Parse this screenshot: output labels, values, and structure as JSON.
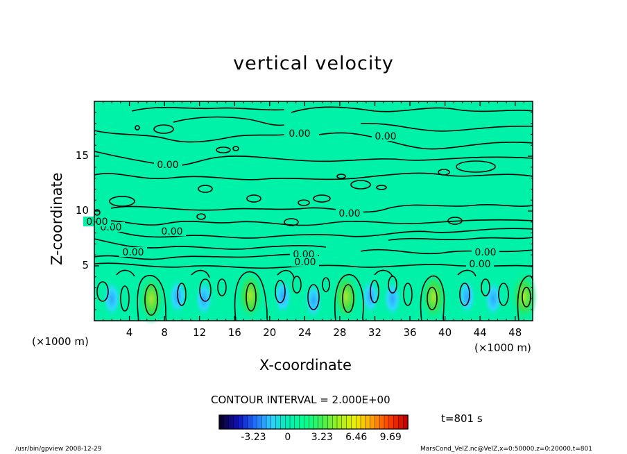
{
  "chart_data": {
    "type": "heatmap",
    "title": "vertical velocity",
    "xlabel": "X-coordinate",
    "ylabel": "Z-coordinate",
    "x_unit_left": "(×1000 m)",
    "x_unit_right": "(×1000 m)",
    "xlim": [
      0,
      50
    ],
    "ylim": [
      0,
      20
    ],
    "x_ticks": [
      4,
      8,
      12,
      16,
      20,
      24,
      28,
      32,
      36,
      40,
      44,
      48
    ],
    "y_ticks": [
      5,
      10,
      15
    ],
    "contour_interval": "CONTOUR INTERVAL = 2.000E+00",
    "time_label": "t=801 s",
    "colorbar": {
      "ticks": [
        "-3.23",
        "0",
        "3.23",
        "6.46",
        "9.69"
      ],
      "tick_values": [
        -3.23,
        0,
        3.23,
        6.46,
        9.69
      ],
      "range": [
        -6.46,
        11.31
      ],
      "colors": [
        "#0a0030",
        "#1010c0",
        "#1f6fff",
        "#2fd0ff",
        "#00f0b0",
        "#00ff90",
        "#40f050",
        "#a0f020",
        "#f0f000",
        "#ffa000",
        "#ff4000",
        "#c80000"
      ]
    },
    "contour_labels": [
      "0.00",
      "0.00",
      "0.00",
      "0.00",
      "0.00",
      "0.00",
      "0.00",
      "0.00",
      "0.00",
      "0.00",
      "0.00",
      "0.00",
      "0.00",
      "0.00"
    ],
    "updraft_cores": [
      {
        "x": 6.5,
        "z": 2.0,
        "w": 6.5
      },
      {
        "x": 17.8,
        "z": 2.3,
        "w": 5.8
      },
      {
        "x": 28.7,
        "z": 2.2,
        "w": 6.0
      },
      {
        "x": 38.7,
        "z": 2.2,
        "w": 5.0
      },
      {
        "x": 49.0,
        "z": 2.2,
        "w": 4.5
      }
    ],
    "downdraft_regions": [
      {
        "x": 2.0,
        "z": 2.0,
        "w": -2.5
      },
      {
        "x": 9.5,
        "z": 2.2,
        "w": -2.0
      },
      {
        "x": 12.5,
        "z": 2.0,
        "w": -1.5
      },
      {
        "x": 21.5,
        "z": 2.2,
        "w": -2.0
      },
      {
        "x": 25.0,
        "z": 1.8,
        "w": -2.5
      },
      {
        "x": 31.5,
        "z": 2.2,
        "w": -2.0
      },
      {
        "x": 34.0,
        "z": 2.0,
        "w": -1.5
      },
      {
        "x": 42.5,
        "z": 2.2,
        "w": -2.0
      },
      {
        "x": 45.5,
        "z": 2.0,
        "w": -2.0
      }
    ]
  },
  "footer_left": "/usr/bin/gpview   2008-12-29",
  "footer_right": "MarsCond_VelZ.nc@VelZ,x=0:50000,z=0:20000,t=801"
}
